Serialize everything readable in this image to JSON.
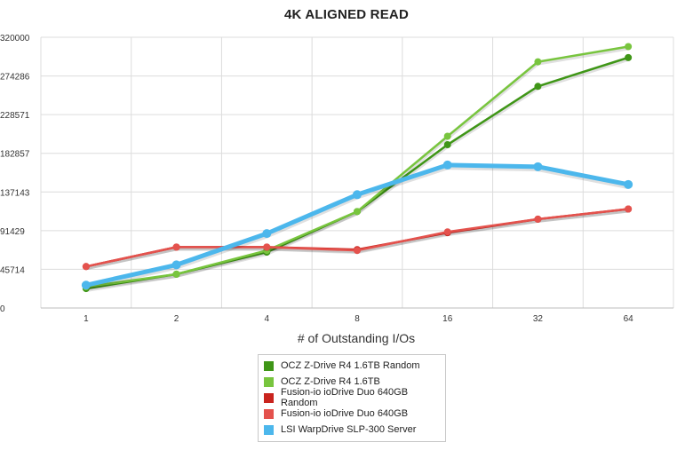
{
  "chart_data": {
    "type": "line",
    "title": "4K ALIGNED READ",
    "xlabel": "# of Outstanding I/Os",
    "ylabel": "",
    "categories": [
      "1",
      "2",
      "4",
      "8",
      "16",
      "32",
      "64"
    ],
    "ylim": [
      0,
      320000
    ],
    "yticks": [
      "0",
      "45714",
      "91429",
      "137143",
      "182857",
      "228571",
      "274286",
      "320000"
    ],
    "grid": true,
    "legend_position": "bottom",
    "series": [
      {
        "name": "OCZ Z-Drive R4 1.6TB Random",
        "color": "#3f9617",
        "width": 2.5,
        "values": [
          23000,
          40000,
          66000,
          114000,
          193000,
          262000,
          296000
        ]
      },
      {
        "name": "OCZ Z-Drive R4 1.6TB",
        "color": "#78c53e",
        "width": 2.5,
        "values": [
          25000,
          40000,
          68000,
          114000,
          203000,
          291000,
          309000
        ]
      },
      {
        "name": "Fusion-io ioDrive Duo 640GB Random",
        "color": "#c9241e",
        "width": 2.5,
        "values": [
          49000,
          72000,
          72000,
          69000,
          89000,
          105000,
          117000
        ]
      },
      {
        "name": "Fusion-io ioDrive Duo 640GB",
        "color": "#e4524d",
        "width": 2.5,
        "values": [
          49000,
          72000,
          72000,
          68000,
          90000,
          105000,
          117000
        ]
      },
      {
        "name": "LSI WarpDrive SLP-300 Server",
        "color": "#4cb7ec",
        "width": 5,
        "values": [
          27000,
          51000,
          88000,
          134000,
          169000,
          167000,
          146000
        ]
      }
    ]
  }
}
